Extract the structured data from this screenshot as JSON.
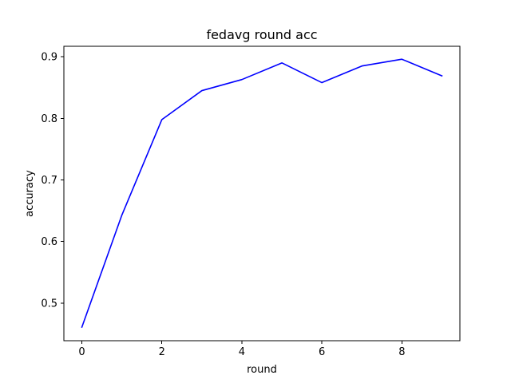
{
  "chart_data": {
    "type": "line",
    "title": "fedavg round acc",
    "xlabel": "round",
    "ylabel": "accuracy",
    "xlim": [
      -0.45,
      9.45
    ],
    "ylim": [
      0.439,
      0.917
    ],
    "x_ticks": [
      0,
      2,
      4,
      6,
      8
    ],
    "y_ticks": [
      0.5,
      0.6,
      0.7,
      0.8,
      0.9
    ],
    "x_tick_labels": [
      "0",
      "2",
      "4",
      "6",
      "8"
    ],
    "y_tick_labels": [
      "0.5",
      "0.6",
      "0.7",
      "0.8",
      "0.9"
    ],
    "grid": false,
    "legend": "none",
    "series": [
      {
        "color": "#0000ff",
        "x": [
          0,
          1,
          2,
          3,
          4,
          5,
          6,
          7,
          8,
          9
        ],
        "values": [
          0.461,
          0.643,
          0.798,
          0.845,
          0.863,
          0.89,
          0.858,
          0.885,
          0.896,
          0.869
        ]
      }
    ]
  }
}
